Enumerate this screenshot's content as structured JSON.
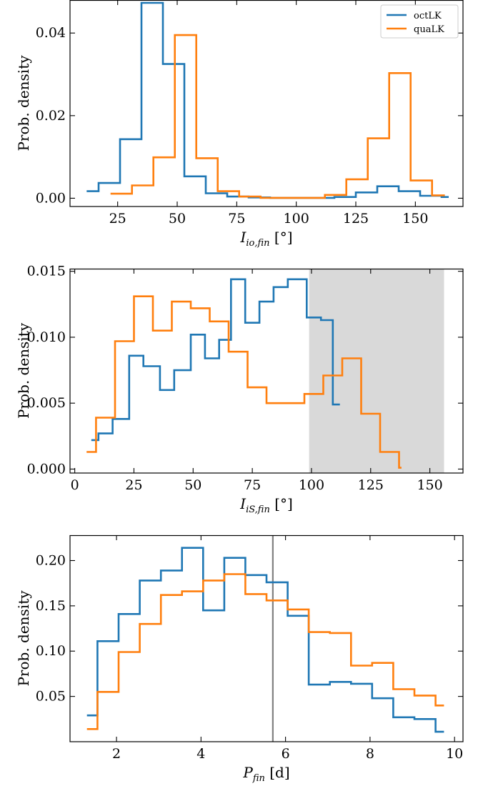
{
  "colors": {
    "octLK": "#1f77b4",
    "quaLK": "#ff7f0e",
    "shade": "#d9d9d9",
    "vline": "#808080"
  },
  "chart_data": [
    {
      "type": "line",
      "step": true,
      "xlabel_main": "I",
      "xlabel_sub": "io,fin",
      "xlabel_unit": "[°]",
      "ylabel": "Prob. density",
      "xlim": [
        5,
        170
      ],
      "ylim": [
        -0.002,
        0.048
      ],
      "xticks": [
        25,
        50,
        75,
        100,
        125,
        150
      ],
      "yticks": [
        0.0,
        0.02,
        0.04
      ],
      "ytick_labels": [
        "0.00",
        "0.02",
        "0.04"
      ],
      "legend": {
        "position": "top-right",
        "entries": [
          "octLK",
          "quaLK"
        ]
      },
      "series": [
        {
          "name": "octLK",
          "edges": [
            12,
            17,
            26,
            35,
            44,
            53,
            62,
            71,
            80,
            89,
            98,
            107,
            116,
            125,
            134,
            143,
            152,
            161,
            164
          ],
          "values": [
            0.0017,
            0.0037,
            0.0143,
            0.0473,
            0.0325,
            0.0053,
            0.0012,
            0.0004,
            0.0002,
            0.0001,
            0.0001,
            0.0001,
            0.0003,
            0.0014,
            0.0029,
            0.0017,
            0.0006,
            0.0003
          ]
        },
        {
          "name": "quaLK",
          "edges": [
            22,
            31,
            40,
            49,
            58,
            67,
            76,
            85,
            94,
            103,
            112,
            121,
            130,
            139,
            148,
            157,
            162
          ],
          "values": [
            0.0011,
            0.0031,
            0.0099,
            0.0395,
            0.0097,
            0.0017,
            0.0004,
            0.0001,
            0.0001,
            0.0001,
            0.0008,
            0.0046,
            0.0145,
            0.0303,
            0.0043,
            0.0007,
            0.0005
          ]
        }
      ]
    },
    {
      "type": "line",
      "step": true,
      "xlabel_main": "I",
      "xlabel_sub": "iS,fin",
      "xlabel_unit": "[°]",
      "ylabel": "Prob. density",
      "xlim": [
        -2,
        164
      ],
      "ylim": [
        -0.0003,
        0.0152
      ],
      "xticks": [
        0,
        25,
        50,
        75,
        100,
        125,
        150
      ],
      "yticks": [
        0.0,
        0.005,
        0.01,
        0.015
      ],
      "ytick_labels": [
        "0.000",
        "0.005",
        "0.010",
        "0.015"
      ],
      "shaded_region": [
        99,
        156
      ],
      "series": [
        {
          "name": "octLK",
          "edges": [
            7,
            10,
            16,
            23,
            29,
            36,
            42,
            49,
            55,
            61,
            66,
            72,
            78,
            84,
            90,
            98,
            104,
            109,
            112
          ],
          "values": [
            0.0022,
            0.0027,
            0.0038,
            0.0086,
            0.0078,
            0.006,
            0.0075,
            0.0102,
            0.0084,
            0.0098,
            0.0144,
            0.0111,
            0.0127,
            0.0138,
            0.0144,
            0.0115,
            0.0113,
            0.0049
          ]
        },
        {
          "name": "quaLK",
          "edges": [
            5,
            9,
            17,
            25,
            33,
            41,
            49,
            57,
            65,
            73,
            81,
            89,
            97,
            105,
            113,
            121,
            129,
            137,
            138
          ],
          "values": [
            0.0013,
            0.0039,
            0.0097,
            0.0131,
            0.0105,
            0.0127,
            0.0122,
            0.0112,
            0.0089,
            0.0062,
            0.005,
            0.005,
            0.0057,
            0.0071,
            0.0084,
            0.0042,
            0.0013,
            0.0001
          ]
        }
      ]
    },
    {
      "type": "line",
      "step": true,
      "xlabel_main": "P",
      "xlabel_sub": "fin",
      "xlabel_unit": "[d]",
      "ylabel": "Prob. density",
      "xlim": [
        0.9,
        10.2
      ],
      "ylim": [
        0.0,
        0.228
      ],
      "xticks": [
        2,
        4,
        6,
        8,
        10
      ],
      "yticks": [
        0.05,
        0.1,
        0.15,
        0.2
      ],
      "ytick_labels": [
        "0.05",
        "0.10",
        "0.15",
        "0.20"
      ],
      "vline": 5.7,
      "series": [
        {
          "name": "octLK",
          "edges": [
            1.3,
            1.55,
            2.05,
            2.55,
            3.05,
            3.55,
            4.05,
            4.55,
            5.05,
            5.55,
            6.05,
            6.55,
            7.05,
            7.55,
            8.05,
            8.55,
            9.05,
            9.55,
            9.75
          ],
          "values": [
            0.029,
            0.111,
            0.141,
            0.178,
            0.189,
            0.214,
            0.145,
            0.203,
            0.184,
            0.176,
            0.139,
            0.063,
            0.066,
            0.064,
            0.048,
            0.027,
            0.025,
            0.011
          ]
        },
        {
          "name": "quaLK",
          "edges": [
            1.3,
            1.55,
            2.05,
            2.55,
            3.05,
            3.55,
            4.05,
            4.55,
            5.05,
            5.55,
            6.05,
            6.55,
            7.05,
            7.55,
            8.05,
            8.55,
            9.05,
            9.55,
            9.75
          ],
          "values": [
            0.014,
            0.055,
            0.099,
            0.13,
            0.162,
            0.166,
            0.178,
            0.185,
            0.163,
            0.156,
            0.146,
            0.121,
            0.12,
            0.084,
            0.087,
            0.058,
            0.051,
            0.04
          ]
        }
      ]
    }
  ]
}
